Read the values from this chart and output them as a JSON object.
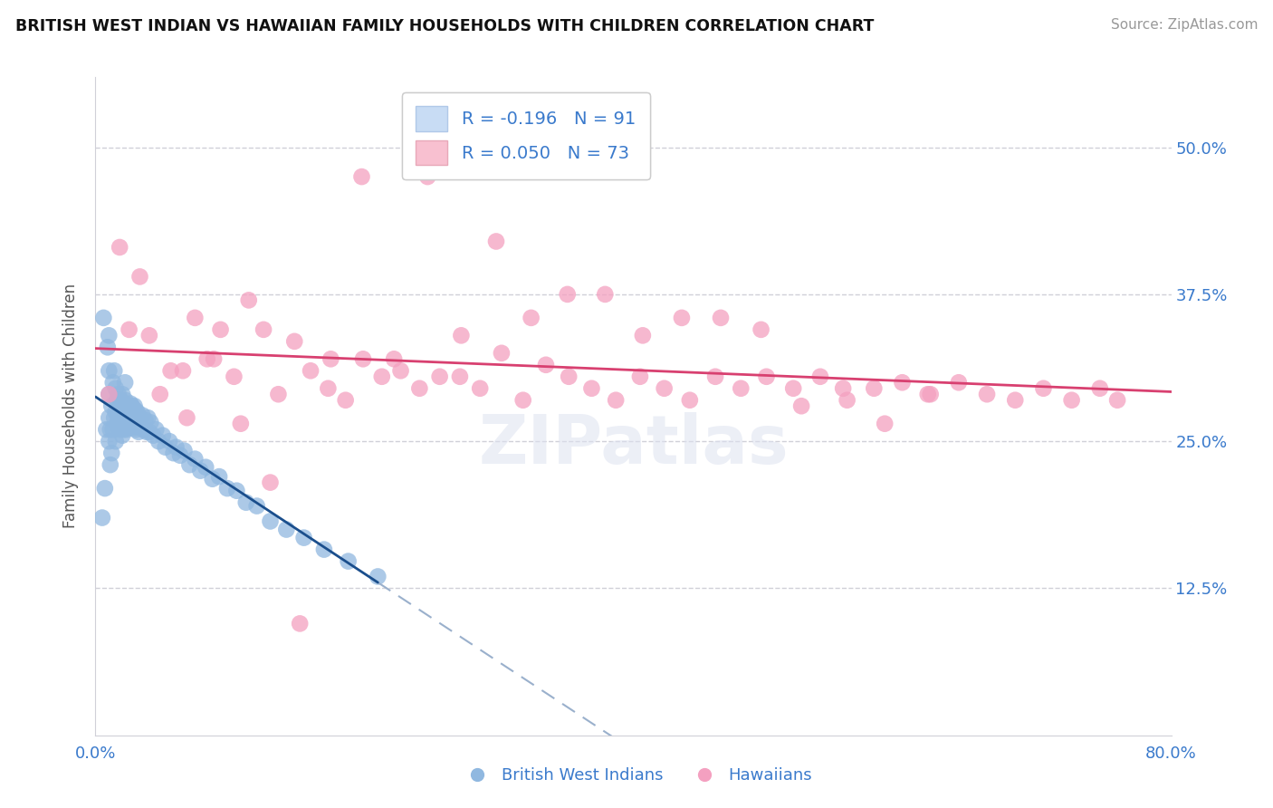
{
  "title": "BRITISH WEST INDIAN VS HAWAIIAN FAMILY HOUSEHOLDS WITH CHILDREN CORRELATION CHART",
  "source": "Source: ZipAtlas.com",
  "ylabel": "Family Households with Children",
  "xlim": [
    0.0,
    0.8
  ],
  "ylim": [
    0.0,
    0.56
  ],
  "ytick_vals": [
    0.125,
    0.25,
    0.375,
    0.5
  ],
  "ytick_labels": [
    "12.5%",
    "25.0%",
    "37.5%",
    "50.0%"
  ],
  "xtick_left": "0.0%",
  "xtick_right": "80.0%",
  "blue_R": -0.196,
  "blue_N": 91,
  "pink_R": 0.05,
  "pink_N": 73,
  "blue_scatter_color": "#90b8e0",
  "pink_scatter_color": "#f4a0c0",
  "blue_line_color": "#1a4e8c",
  "pink_line_color": "#d84070",
  "dashed_line_color": "#9ab0cc",
  "label_blue": "British West Indians",
  "label_pink": "Hawaiians",
  "legend_text_color": "#3a7acc",
  "grid_color": "#d0d0d8",
  "title_color": "#111111",
  "source_color": "#999999",
  "blue_scatter_x": [
    0.005,
    0.006,
    0.007,
    0.008,
    0.009,
    0.01,
    0.01,
    0.01,
    0.01,
    0.01,
    0.011,
    0.011,
    0.012,
    0.012,
    0.013,
    0.013,
    0.014,
    0.014,
    0.015,
    0.015,
    0.015,
    0.016,
    0.016,
    0.017,
    0.017,
    0.018,
    0.018,
    0.019,
    0.019,
    0.02,
    0.02,
    0.02,
    0.021,
    0.021,
    0.022,
    0.022,
    0.022,
    0.023,
    0.023,
    0.024,
    0.024,
    0.025,
    0.025,
    0.026,
    0.026,
    0.027,
    0.027,
    0.028,
    0.028,
    0.029,
    0.029,
    0.03,
    0.03,
    0.031,
    0.031,
    0.032,
    0.033,
    0.034,
    0.035,
    0.036,
    0.037,
    0.038,
    0.039,
    0.04,
    0.041,
    0.043,
    0.045,
    0.047,
    0.05,
    0.052,
    0.055,
    0.058,
    0.06,
    0.063,
    0.066,
    0.07,
    0.074,
    0.078,
    0.082,
    0.087,
    0.092,
    0.098,
    0.105,
    0.112,
    0.12,
    0.13,
    0.142,
    0.155,
    0.17,
    0.188,
    0.21
  ],
  "blue_scatter_y": [
    0.185,
    0.355,
    0.21,
    0.26,
    0.33,
    0.25,
    0.27,
    0.29,
    0.31,
    0.34,
    0.23,
    0.26,
    0.24,
    0.28,
    0.26,
    0.3,
    0.27,
    0.31,
    0.25,
    0.275,
    0.295,
    0.265,
    0.285,
    0.27,
    0.29,
    0.26,
    0.28,
    0.265,
    0.285,
    0.255,
    0.27,
    0.29,
    0.26,
    0.28,
    0.265,
    0.285,
    0.3,
    0.26,
    0.278,
    0.265,
    0.28,
    0.262,
    0.278,
    0.268,
    0.282,
    0.265,
    0.28,
    0.262,
    0.278,
    0.265,
    0.28,
    0.26,
    0.276,
    0.262,
    0.275,
    0.258,
    0.27,
    0.262,
    0.272,
    0.26,
    0.268,
    0.258,
    0.27,
    0.258,
    0.266,
    0.255,
    0.26,
    0.25,
    0.255,
    0.245,
    0.25,
    0.24,
    0.245,
    0.238,
    0.242,
    0.23,
    0.235,
    0.225,
    0.228,
    0.218,
    0.22,
    0.21,
    0.208,
    0.198,
    0.195,
    0.182,
    0.175,
    0.168,
    0.158,
    0.148,
    0.135
  ],
  "pink_scatter_x": [
    0.01,
    0.018,
    0.025,
    0.033,
    0.04,
    0.048,
    0.056,
    0.065,
    0.074,
    0.083,
    0.093,
    0.103,
    0.114,
    0.125,
    0.136,
    0.148,
    0.16,
    0.173,
    0.186,
    0.199,
    0.213,
    0.227,
    0.241,
    0.256,
    0.271,
    0.286,
    0.302,
    0.318,
    0.335,
    0.352,
    0.369,
    0.387,
    0.405,
    0.423,
    0.442,
    0.461,
    0.48,
    0.499,
    0.519,
    0.539,
    0.559,
    0.579,
    0.6,
    0.621,
    0.642,
    0.663,
    0.684,
    0.705,
    0.726,
    0.747,
    0.76,
    0.068,
    0.088,
    0.108,
    0.13,
    0.152,
    0.175,
    0.198,
    0.222,
    0.247,
    0.272,
    0.298,
    0.324,
    0.351,
    0.379,
    0.407,
    0.436,
    0.465,
    0.495,
    0.525,
    0.556,
    0.587,
    0.619
  ],
  "pink_scatter_y": [
    0.29,
    0.415,
    0.345,
    0.39,
    0.34,
    0.29,
    0.31,
    0.31,
    0.355,
    0.32,
    0.345,
    0.305,
    0.37,
    0.345,
    0.29,
    0.335,
    0.31,
    0.295,
    0.285,
    0.32,
    0.305,
    0.31,
    0.295,
    0.305,
    0.305,
    0.295,
    0.325,
    0.285,
    0.315,
    0.305,
    0.295,
    0.285,
    0.305,
    0.295,
    0.285,
    0.305,
    0.295,
    0.305,
    0.295,
    0.305,
    0.285,
    0.295,
    0.3,
    0.29,
    0.3,
    0.29,
    0.285,
    0.295,
    0.285,
    0.295,
    0.285,
    0.27,
    0.32,
    0.265,
    0.215,
    0.095,
    0.32,
    0.475,
    0.32,
    0.475,
    0.34,
    0.42,
    0.355,
    0.375,
    0.375,
    0.34,
    0.355,
    0.355,
    0.345,
    0.28,
    0.295,
    0.265,
    0.29
  ]
}
